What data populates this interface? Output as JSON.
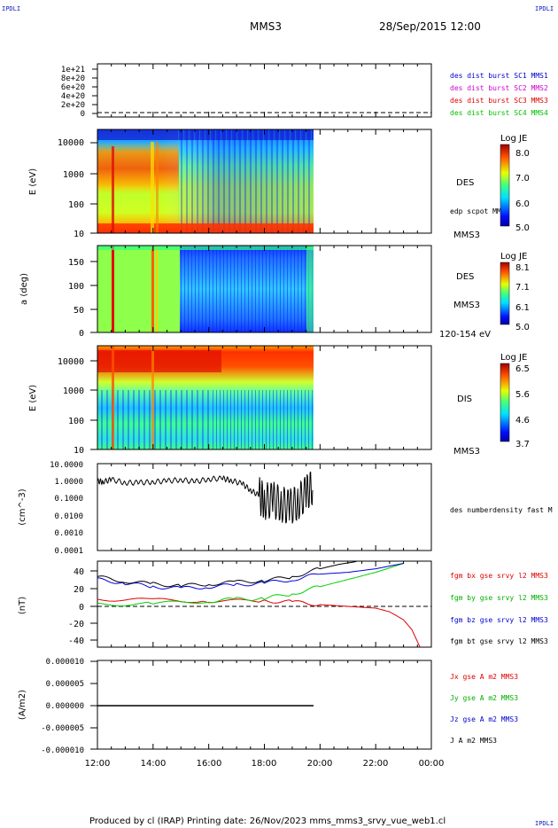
{
  "corner_marks": {
    "top_left": "IPDLI",
    "top_right": "IPDLI",
    "bottom_right": "IPDLI"
  },
  "header": {
    "spacecraft": "MMS3",
    "date_time": "28/Sep/2015 12:00"
  },
  "footer": {
    "text": "Produced by cl (IRAP)   Printing date: 26/Nov/2023   mms_mms3_srvy_vue_web1.cl"
  },
  "colors": {
    "mms1": "#0000d0",
    "mms2": "#d000d0",
    "mms3": "#e00000",
    "mms4": "#00c000",
    "bx": "#e00000",
    "by": "#00d000",
    "bz": "#0000e0",
    "bt": "#000000"
  },
  "x_axis": {
    "ticks": [
      "12:00",
      "14:00",
      "16:00",
      "18:00",
      "20:00",
      "22:00",
      "00:00"
    ],
    "hours": [
      0,
      2,
      4,
      6,
      8,
      10,
      12
    ]
  },
  "chart_data": [
    {
      "type": "line",
      "panel": "burst-distributions",
      "ylabel": "",
      "y_ticks": [
        "1e+21",
        "8e+20",
        "6e+20",
        "4e+20",
        "2e+20",
        "0"
      ],
      "y_tick_values": [
        1e+21,
        8e+20,
        6e+20,
        4e+20,
        2e+20,
        0
      ],
      "ylim": [
        0,
        1.1e+21
      ],
      "legend": [
        "des dist burst SC1 MMS1",
        "des dist burst SC2 MMS2",
        "des dist burst SC3 MMS3",
        "des dist burst SC4 MMS4"
      ],
      "values": []
    },
    {
      "type": "heatmap",
      "panel": "des-energy-spectrogram",
      "ylabel": "E (eV)",
      "y_ticks": [
        "10000",
        "1000",
        "100",
        "10"
      ],
      "y_scale": "log",
      "ylim": [
        10,
        30000
      ],
      "x_range_hours": [
        0,
        7.75
      ],
      "instrument": "DES",
      "overlay_label": "edp scpot MMS3",
      "spacecraft": "MMS3",
      "colorbar": {
        "title": "Log JE",
        "ticks": [
          "8.0",
          "7.0",
          "6.0",
          "5.0"
        ],
        "min": 5.0,
        "max": 8.1
      }
    },
    {
      "type": "heatmap",
      "panel": "des-pitch-angle",
      "ylabel": "a (deg)",
      "y_ticks": [
        "150",
        "100",
        "50",
        "0"
      ],
      "ylim": [
        0,
        180
      ],
      "x_range_hours": [
        0,
        7.75
      ],
      "instrument": "DES",
      "spacecraft": "MMS3",
      "energy_range": "120-154 eV",
      "colorbar": {
        "title": "Log JE",
        "ticks": [
          "8.1",
          "7.1",
          "6.1",
          "5.0"
        ],
        "min": 5.0,
        "max": 8.1
      }
    },
    {
      "type": "heatmap",
      "panel": "dis-energy-spectrogram",
      "ylabel": "E (eV)",
      "y_ticks": [
        "10000",
        "1000",
        "100",
        "10"
      ],
      "y_scale": "log",
      "ylim": [
        10,
        30000
      ],
      "x_range_hours": [
        0,
        7.75
      ],
      "instrument": "DIS",
      "spacecraft": "MMS3",
      "colorbar": {
        "title": "Log JE",
        "ticks": [
          "6.5",
          "5.6",
          "4.6",
          "3.7"
        ],
        "min": 3.7,
        "max": 6.6
      }
    },
    {
      "type": "line",
      "panel": "density",
      "ylabel": "(cm^-3)",
      "y_ticks": [
        "10.0000",
        "1.0000",
        "0.1000",
        "0.0100",
        "0.0010",
        "0.0001"
      ],
      "y_scale": "log",
      "ylim": [
        0.0001,
        10
      ],
      "series": [
        {
          "name": "des numberdensity fast M",
          "x": [
            0,
            0.2,
            0.5,
            1,
            1.5,
            2,
            2.5,
            3,
            3.5,
            4,
            4.5,
            4.8,
            5.2,
            5.5,
            5.8,
            6,
            6.3,
            6.6,
            6.9,
            7.2,
            7.5,
            7.75
          ],
          "values": [
            1.0,
            0.9,
            1.2,
            0.8,
            0.8,
            0.9,
            1.0,
            1.2,
            0.9,
            1.3,
            1.4,
            1.1,
            0.7,
            0.3,
            0.15,
            0.07,
            0.08,
            0.05,
            0.03,
            0.06,
            0.2,
            0.5
          ]
        }
      ]
    },
    {
      "type": "line",
      "panel": "magnetic-field",
      "ylabel": "(nT)",
      "y_ticks": [
        "40",
        "20",
        "0",
        "-20",
        "-40"
      ],
      "ylim": [
        -48,
        48
      ],
      "series": [
        {
          "name": "fgm bx gse srvy l2 MMS3",
          "x": [
            0,
            2,
            4,
            6,
            7,
            8,
            9,
            10,
            10.5,
            11,
            11.3,
            11.6
          ],
          "values": [
            8,
            7,
            6,
            6,
            5,
            2,
            0,
            -2,
            -6,
            -15,
            -26,
            -46
          ]
        },
        {
          "name": "fgm by gse srvy l2 MMS3",
          "x": [
            0,
            2,
            4,
            5,
            6,
            7,
            8,
            9,
            10,
            11
          ],
          "values": [
            2,
            3,
            6,
            8,
            9,
            14,
            22,
            30,
            38,
            48
          ]
        },
        {
          "name": "fgm bz gse srvy l2 MMS3",
          "x": [
            0,
            1,
            2,
            3,
            4,
            5,
            6,
            7,
            8,
            9,
            10,
            11
          ],
          "values": [
            30,
            26,
            22,
            20,
            22,
            24,
            26,
            30,
            36,
            38,
            42,
            48
          ]
        },
        {
          "name": "fgm bt gse srvy l2 MMS3",
          "x": [
            0,
            1,
            2,
            3,
            4,
            5,
            6,
            7,
            8,
            8.7,
            9.3
          ],
          "values": [
            33,
            28,
            25,
            23,
            25,
            27,
            29,
            33,
            42,
            47,
            50
          ]
        }
      ]
    },
    {
      "type": "line",
      "panel": "current-density",
      "ylabel": "(A/m2)",
      "y_ticks": [
        "0.000010",
        "0.000005",
        "0.000000",
        "-0.000005",
        "-0.000010"
      ],
      "ylim": [
        -1e-05,
        1e-05
      ],
      "series": [
        {
          "name": "Jx gse A m2 MMS3",
          "x": [
            0,
            7.75
          ],
          "values": [
            0,
            0
          ]
        },
        {
          "name": "Jy gse A m2 MMS3",
          "x": [
            0,
            7.75
          ],
          "values": [
            0,
            0
          ]
        },
        {
          "name": "Jz gse A m2 MMS3",
          "x": [
            0,
            7.75
          ],
          "values": [
            0,
            0
          ]
        },
        {
          "name": "J A m2 MMS3",
          "x": [
            0,
            7.75
          ],
          "values": [
            0,
            0
          ]
        }
      ]
    }
  ]
}
